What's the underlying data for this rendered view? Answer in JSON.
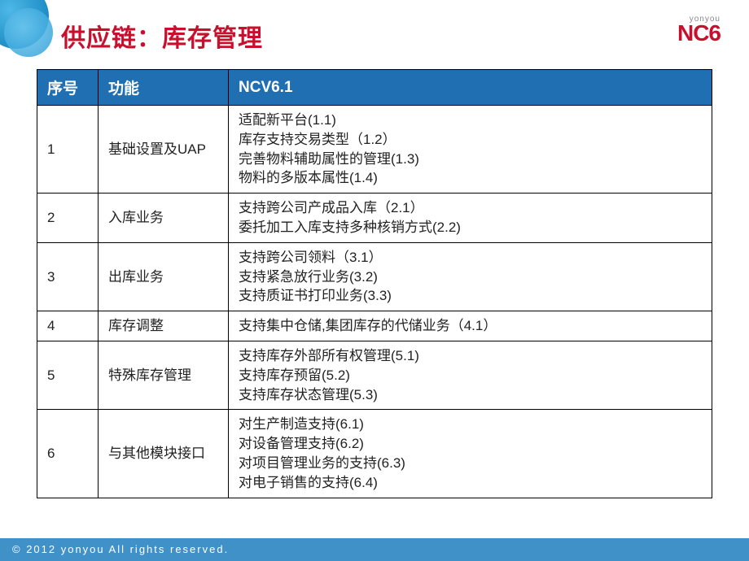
{
  "title": "供应链：库存管理",
  "logo": {
    "small": "yonyou",
    "main": "NC6"
  },
  "table": {
    "header_bg": "#1f6fb2",
    "header_color": "#ffffff",
    "border_color": "#000000",
    "columns": [
      "序号",
      "功能",
      "NCV6.1"
    ],
    "rows": [
      {
        "seq": "1",
        "func": "基础设置及UAP",
        "detail": "适配新平台(1.1)\n库存支持交易类型（1.2）\n完善物料辅助属性的管理(1.3)\n物料的多版本属性(1.4)"
      },
      {
        "seq": "2",
        "func": "入库业务",
        "detail": "支持跨公司产成品入库（2.1）\n委托加工入库支持多种核销方式(2.2)"
      },
      {
        "seq": "3",
        "func": "出库业务",
        "detail": "支持跨公司领料（3.1）\n支持紧急放行业务(3.2)\n支持质证书打印业务(3.3)"
      },
      {
        "seq": "4",
        "func": "库存调整",
        "detail": "支持集中仓储,集团库存的代储业务（4.1）"
      },
      {
        "seq": "5",
        "func": "特殊库存管理",
        "detail": "支持库存外部所有权管理(5.1)\n支持库存预留(5.2)\n支持库存状态管理(5.3)"
      },
      {
        "seq": "6",
        "func": "与其他模块接口",
        "detail": "对生产制造支持(6.1)\n对设备管理支持(6.2)\n对项目管理业务的支持(6.3)\n对电子销售的支持(6.4)"
      }
    ]
  },
  "footer": "© 2012  yonyou  All  rights  reserved.",
  "colors": {
    "title_color": "#c8102e",
    "footer_bg": "#4191c9"
  }
}
